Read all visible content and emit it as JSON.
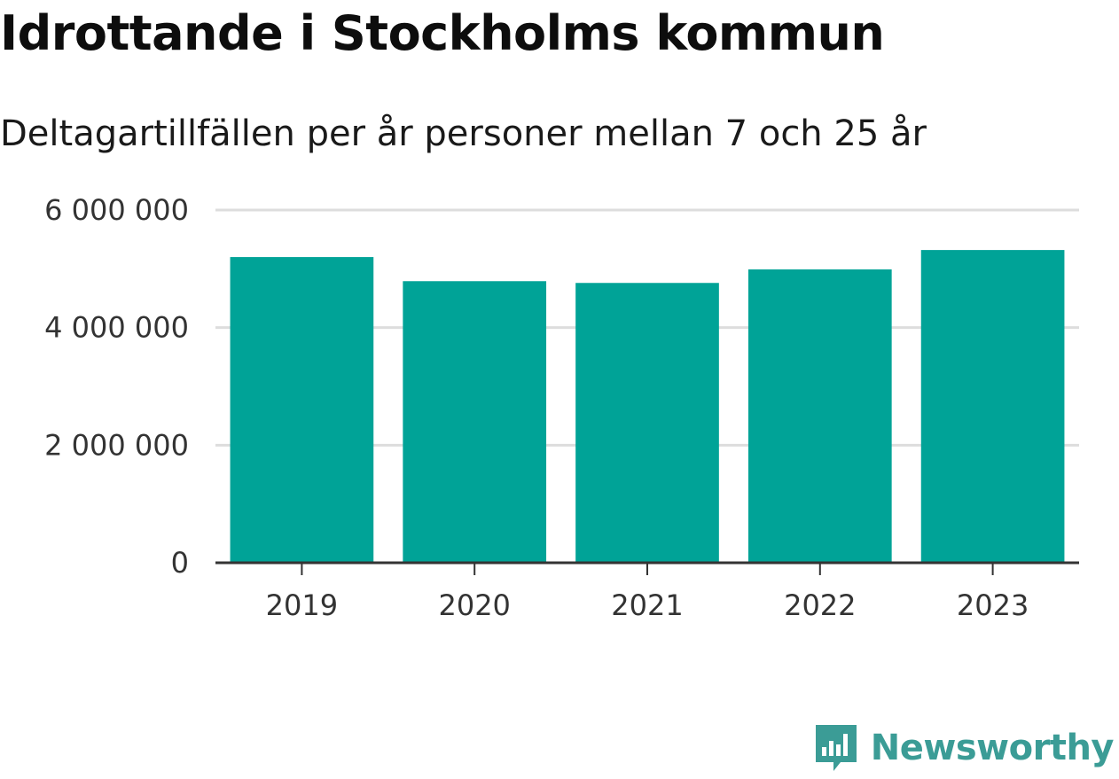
{
  "header": {
    "title": "Idrottande i Stockholms kommun",
    "subtitle": "Deltagartillfällen per år personer mellan 7 och 25 år"
  },
  "chart_data": {
    "type": "bar",
    "title": "Idrottande i Stockholms kommun",
    "subtitle": "Deltagartillfällen per år personer mellan 7 och 25 år",
    "xlabel": "",
    "ylabel": "",
    "categories": [
      "2019",
      "2020",
      "2021",
      "2022",
      "2023"
    ],
    "values": [
      5200000,
      4790000,
      4760000,
      4990000,
      5320000
    ],
    "ylim": [
      0,
      6000000
    ],
    "yticks": [
      0,
      2000000,
      4000000,
      6000000
    ],
    "ytick_labels": [
      "0",
      "2 000 000",
      "4 000 000",
      "6 000 000"
    ],
    "grid": true,
    "legend": "none",
    "bar_color": "#00a397"
  },
  "branding": {
    "name": "Newsworthy",
    "logo_icon": "bar-chart-speech-bubble-icon",
    "color": "#3b9c96"
  }
}
